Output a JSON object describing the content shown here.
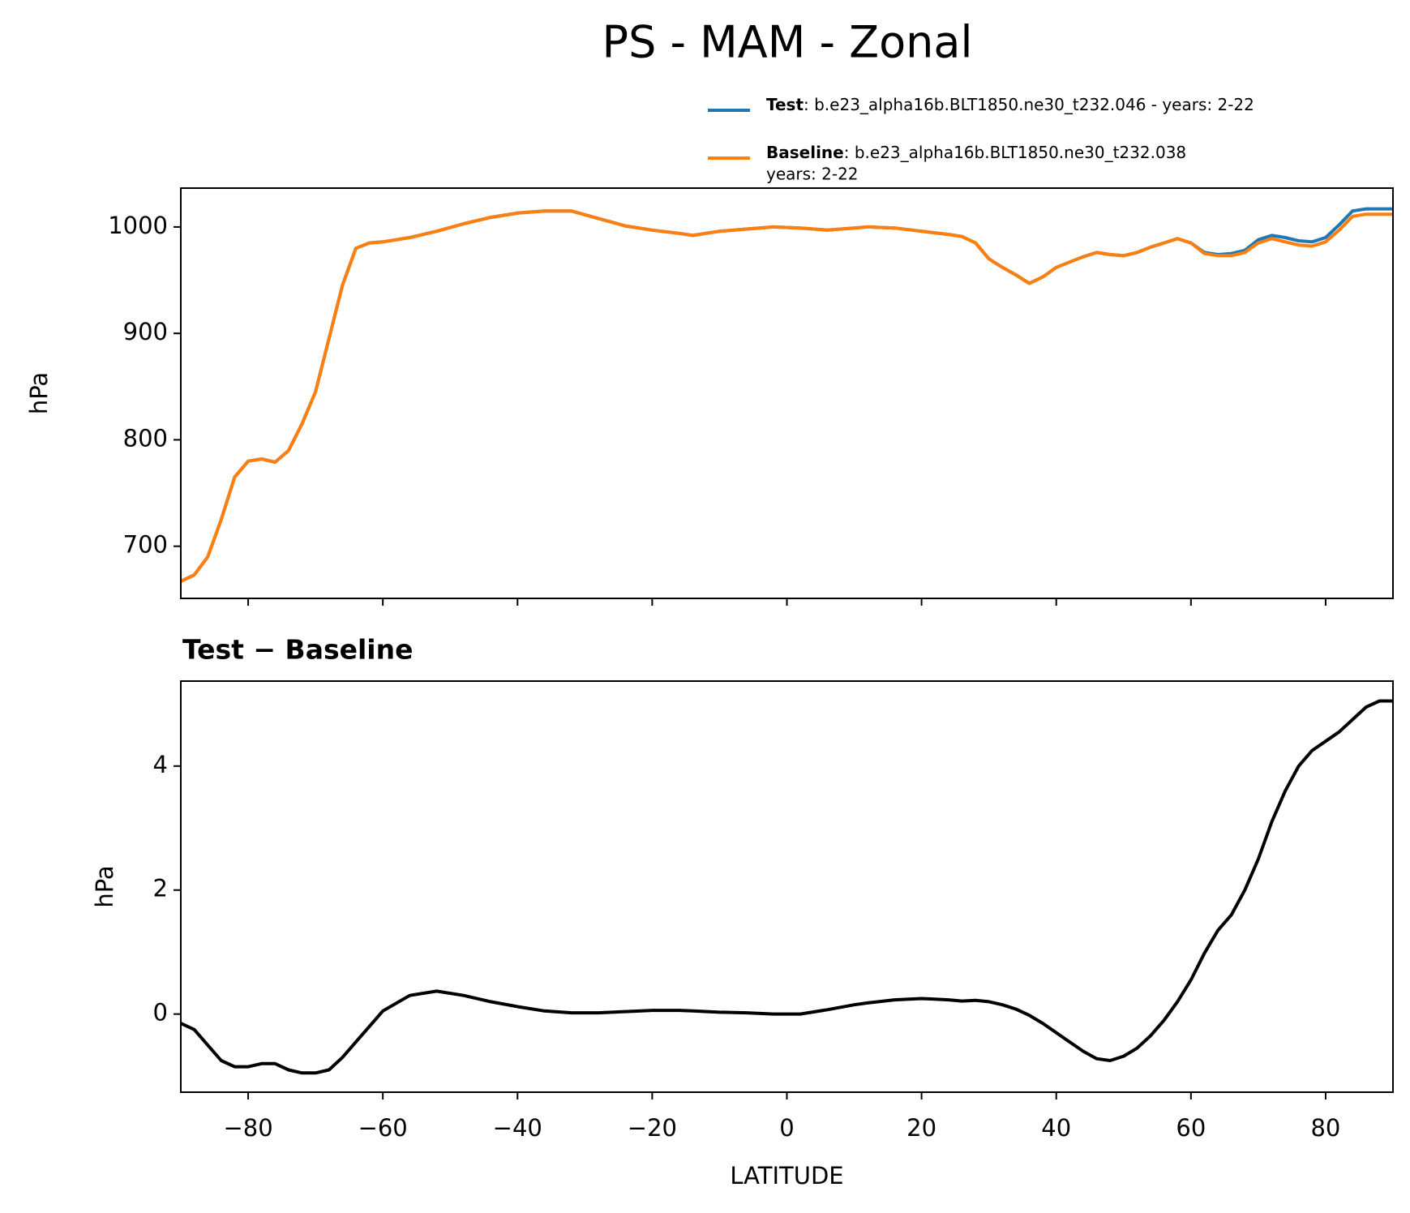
{
  "title": "PS - MAM - Zonal",
  "chart_data": [
    {
      "type": "line",
      "ylabel": "hPa",
      "xlim": [
        -90,
        90
      ],
      "ylim": [
        651,
        1036.5
      ],
      "xticks": [
        -80,
        -60,
        -40,
        -20,
        0,
        20,
        40,
        60,
        80
      ],
      "x_tick_labels": false,
      "yticks": [
        700,
        800,
        900,
        1000
      ],
      "legend": "above",
      "x": [
        -90,
        -88,
        -86,
        -84,
        -82,
        -80,
        -78,
        -76,
        -74,
        -72,
        -70,
        -68,
        -66,
        -64,
        -62,
        -60,
        -56,
        -52,
        -48,
        -44,
        -40,
        -36,
        -32,
        -28,
        -24,
        -20,
        -16,
        -14,
        -10,
        -6,
        -2,
        2,
        6,
        10,
        12,
        16,
        20,
        24,
        26,
        28,
        30,
        32,
        34,
        36,
        38,
        40,
        42,
        44,
        46,
        48,
        50,
        52,
        54,
        56,
        58,
        60,
        62,
        64,
        66,
        68,
        70,
        72,
        74,
        76,
        78,
        80,
        82,
        84,
        86,
        88,
        90
      ],
      "series": [
        {
          "name": "Test",
          "label_lines": [
            ": b.e23_alpha16b.BLT1850.ne30_t232.046 - years: 2-22"
          ],
          "color": "#1f77b4",
          "values": [
            667,
            673,
            690,
            725,
            765,
            780,
            782,
            779,
            790,
            815,
            845,
            895,
            945,
            980,
            985,
            986,
            990,
            996,
            1003,
            1009,
            1013,
            1015,
            1015,
            1008,
            1001,
            997,
            994,
            992,
            996,
            998,
            1000,
            999,
            997,
            999,
            1000,
            999,
            996,
            993,
            991,
            985,
            970,
            962,
            955,
            947,
            953,
            962,
            967,
            972,
            976,
            974,
            973,
            976,
            981,
            985,
            989,
            985,
            976,
            974,
            975,
            978,
            988,
            992,
            990,
            987,
            986,
            990,
            1002,
            1015,
            1017,
            1017,
            1017
          ]
        },
        {
          "name": "Baseline",
          "label_lines": [
            ": b.e23_alpha16b.BLT1850.ne30_t232.038",
            "years: 2-22"
          ],
          "color": "#ff7f0e",
          "values": [
            667,
            673,
            690,
            725,
            765,
            780,
            782,
            779,
            790,
            815,
            845,
            895,
            945,
            980,
            985,
            986,
            990,
            996,
            1003,
            1009,
            1013,
            1015,
            1015,
            1008,
            1001,
            997,
            994,
            992,
            996,
            998,
            1000,
            999,
            997,
            999,
            1000,
            999,
            996,
            993,
            991,
            985,
            970,
            962,
            955,
            947,
            953,
            962,
            967,
            972,
            976,
            974,
            973,
            976,
            981,
            985,
            989,
            985,
            975,
            973,
            973,
            976,
            985,
            989,
            986,
            983,
            982,
            986,
            997,
            1010,
            1012,
            1012,
            1012
          ]
        }
      ]
    },
    {
      "type": "line",
      "title": "Test − Baseline",
      "ylabel": "hPa",
      "xlabel": "LATITUDE",
      "xlim": [
        -90,
        90
      ],
      "ylim": [
        -1.26,
        5.37
      ],
      "xticks": [
        {
          "value": -80,
          "label": "−80"
        },
        {
          "value": -60,
          "label": "−60"
        },
        {
          "value": -40,
          "label": "−40"
        },
        {
          "value": -20,
          "label": "−20"
        },
        0,
        20,
        40,
        60,
        80
      ],
      "yticks": [
        0,
        2,
        4
      ],
      "x": [
        -90,
        -88,
        -86,
        -84,
        -82,
        -80,
        -78,
        -76,
        -74,
        -72,
        -70,
        -68,
        -66,
        -64,
        -62,
        -60,
        -56,
        -52,
        -48,
        -44,
        -40,
        -36,
        -32,
        -28,
        -24,
        -20,
        -16,
        -14,
        -10,
        -6,
        -2,
        2,
        6,
        10,
        12,
        16,
        20,
        24,
        26,
        28,
        30,
        32,
        34,
        36,
        38,
        40,
        42,
        44,
        46,
        48,
        50,
        52,
        54,
        56,
        58,
        60,
        62,
        64,
        66,
        68,
        70,
        72,
        74,
        76,
        78,
        80,
        82,
        84,
        86,
        88,
        90
      ],
      "series": [
        {
          "color": "#000000",
          "values": [
            -0.15,
            -0.25,
            -0.5,
            -0.75,
            -0.85,
            -0.85,
            -0.8,
            -0.8,
            -0.9,
            -0.95,
            -0.95,
            -0.9,
            -0.7,
            -0.45,
            -0.2,
            0.05,
            0.3,
            0.37,
            0.3,
            0.2,
            0.12,
            0.05,
            0.02,
            0.02,
            0.04,
            0.06,
            0.06,
            0.05,
            0.03,
            0.02,
            0,
            0,
            0.07,
            0.15,
            0.18,
            0.23,
            0.25,
            0.23,
            0.21,
            0.22,
            0.2,
            0.15,
            0.08,
            -0.02,
            -0.15,
            -0.3,
            -0.45,
            -0.6,
            -0.72,
            -0.75,
            -0.68,
            -0.55,
            -0.35,
            -0.1,
            0.2,
            0.55,
            0.98,
            1.35,
            1.6,
            2.0,
            2.5,
            3.1,
            3.6,
            4.0,
            4.25,
            4.4,
            4.55,
            4.75,
            4.95,
            5.05,
            5.05
          ]
        }
      ]
    }
  ]
}
